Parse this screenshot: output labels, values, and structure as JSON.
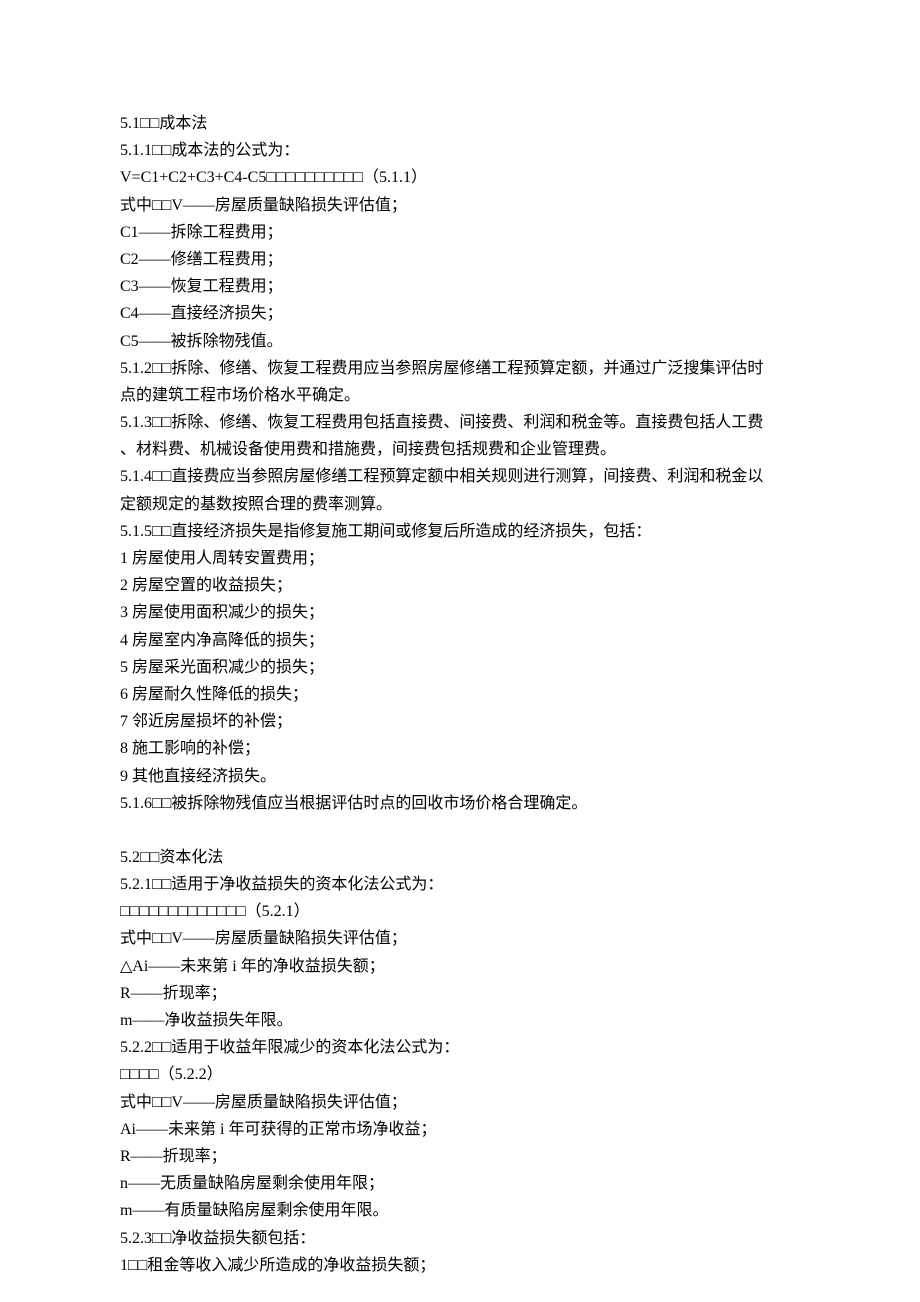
{
  "lines": [
    "5.1□□成本法",
    "5.1.1□□成本法的公式为：",
    "V=C1+C2+C3+C4-C5□□□□□□□□□□（5.1.1）",
    "式中□□V——房屋质量缺陷损失评估值；",
    "C1——拆除工程费用；",
    "C2——修缮工程费用；",
    "C3——恢复工程费用；",
    "C4——直接经济损失；",
    "C5——被拆除物残值。",
    "5.1.2□□拆除、修缮、恢复工程费用应当参照房屋修缮工程预算定额，并通过广泛搜集评估时点的建筑工程市场价格水平确定。",
    "5.1.3□□拆除、修缮、恢复工程费用包括直接费、间接费、利润和税金等。直接费包括人工费、材料费、机械设备使用费和措施费，间接费包括规费和企业管理费。",
    "5.1.4□□直接费应当参照房屋修缮工程预算定额中相关规则进行测算，间接费、利润和税金以定额规定的基数按照合理的费率测算。",
    "5.1.5□□直接经济损失是指修复施工期间或修复后所造成的经济损失，包括：",
    "1 房屋使用人周转安置费用；",
    "2 房屋空置的收益损失；",
    "3 房屋使用面积减少的损失；",
    "4 房屋室内净高降低的损失；",
    "5 房屋采光面积减少的损失；",
    "6 房屋耐久性降低的损失；",
    "7 邻近房屋损坏的补偿；",
    "8 施工影响的补偿；",
    "9 其他直接经济损失。",
    "5.1.6□□被拆除物残值应当根据评估时点的回收市场价格合理确定。",
    "__SPACER__",
    "5.2□□资本化法",
    "5.2.1□□适用于净收益损失的资本化法公式为：",
    "□□□□□□□□□□□□□（5.2.1）",
    "式中□□V——房屋质量缺陷损失评估值；",
    "△Ai——未来第 i 年的净收益损失额；",
    "R——折现率；",
    "m——净收益损失年限。",
    "5.2.2□□适用于收益年限减少的资本化法公式为：",
    "□□□□（5.2.2）",
    "式中□□V——房屋质量缺陷损失评估值；",
    "Ai——未来第 i 年可获得的正常市场净收益；",
    "R——折现率；",
    "n——无质量缺陷房屋剩余使用年限；",
    "m——有质量缺陷房屋剩余使用年限。",
    "5.2.3□□净收益损失额包括：",
    "1□□租金等收入减少所造成的净收益损失额；"
  ],
  "wrapWidth": 41,
  "colors": {
    "background": "#ffffff",
    "text": "#000000"
  },
  "fontSize": 16,
  "lineHeight": 1.7
}
